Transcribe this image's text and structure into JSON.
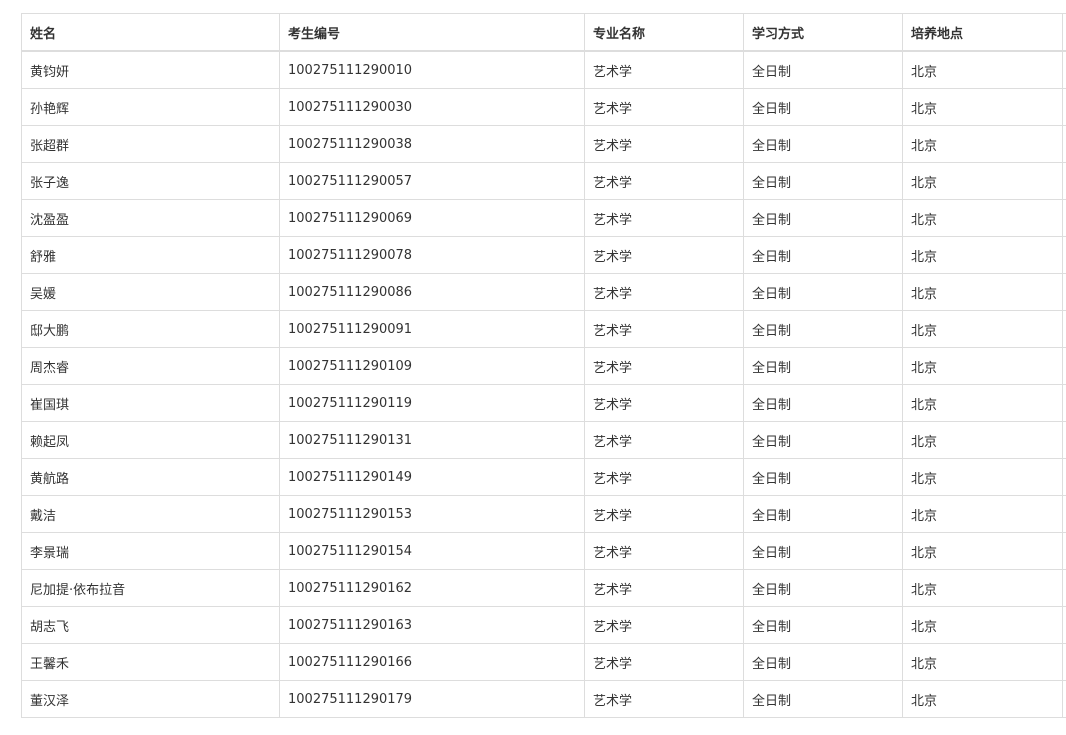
{
  "table": {
    "headers": [
      "姓名",
      "考生编号",
      "专业名称",
      "学习方式",
      "培养地点"
    ],
    "rows": [
      [
        "黄钧妍",
        "100275111290010",
        "艺术学",
        "全日制",
        "北京"
      ],
      [
        "孙艳辉",
        "100275111290030",
        "艺术学",
        "全日制",
        "北京"
      ],
      [
        "张超群",
        "100275111290038",
        "艺术学",
        "全日制",
        "北京"
      ],
      [
        "张子逸",
        "100275111290057",
        "艺术学",
        "全日制",
        "北京"
      ],
      [
        "沈盈盈",
        "100275111290069",
        "艺术学",
        "全日制",
        "北京"
      ],
      [
        "舒雅",
        "100275111290078",
        "艺术学",
        "全日制",
        "北京"
      ],
      [
        "吴媛",
        "100275111290086",
        "艺术学",
        "全日制",
        "北京"
      ],
      [
        "邸大鹏",
        "100275111290091",
        "艺术学",
        "全日制",
        "北京"
      ],
      [
        "周杰睿",
        "100275111290109",
        "艺术学",
        "全日制",
        "北京"
      ],
      [
        "崔国琪",
        "100275111290119",
        "艺术学",
        "全日制",
        "北京"
      ],
      [
        "赖起凤",
        "100275111290131",
        "艺术学",
        "全日制",
        "北京"
      ],
      [
        "黄航路",
        "100275111290149",
        "艺术学",
        "全日制",
        "北京"
      ],
      [
        "戴洁",
        "100275111290153",
        "艺术学",
        "全日制",
        "北京"
      ],
      [
        "李景瑞",
        "100275111290154",
        "艺术学",
        "全日制",
        "北京"
      ],
      [
        "尼加提·依布拉音",
        "100275111290162",
        "艺术学",
        "全日制",
        "北京"
      ],
      [
        "胡志飞",
        "100275111290163",
        "艺术学",
        "全日制",
        "北京"
      ],
      [
        "王馨禾",
        "100275111290166",
        "艺术学",
        "全日制",
        "北京"
      ],
      [
        "董汉泽",
        "100275111290179",
        "艺术学",
        "全日制",
        "北京"
      ]
    ]
  }
}
